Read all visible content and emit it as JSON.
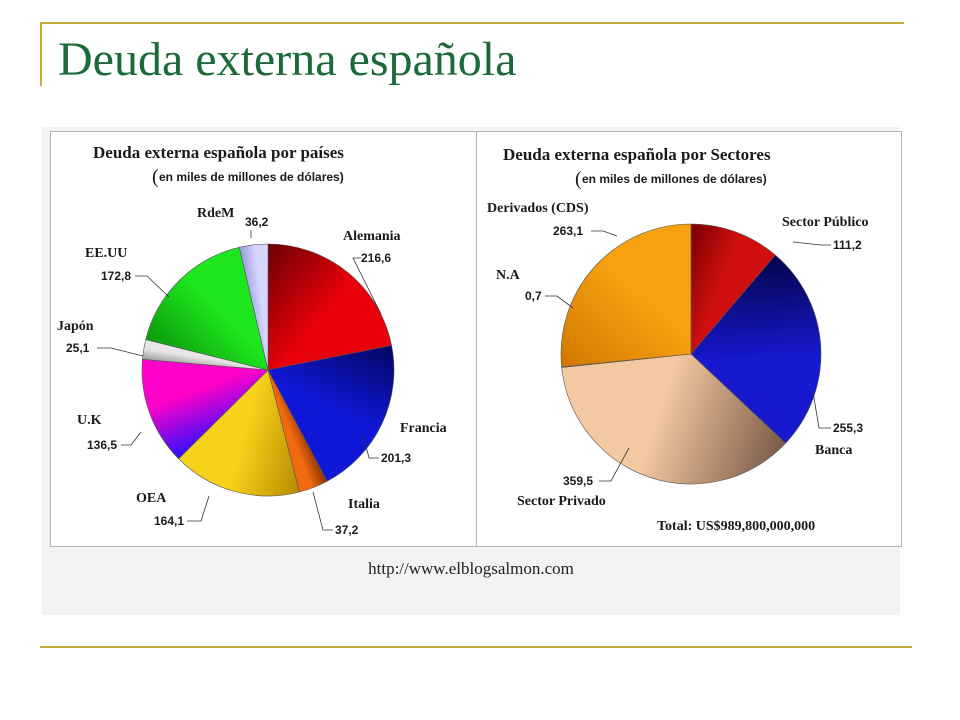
{
  "slide": {
    "title": "Deuda externa española"
  },
  "source": {
    "url": "http://www.elblogsalmon.com"
  },
  "chart_data": [
    {
      "type": "pie",
      "title": "Deuda externa española por países",
      "subtitle_paren": "(",
      "subtitle": "en miles de millones de dólares)",
      "slices": [
        {
          "name": "Alemania",
          "value": 216.6,
          "label": "216,6",
          "color": "#e8000a",
          "dark": "#6a0003"
        },
        {
          "name": "Francia",
          "value": 201.3,
          "label": "201,3",
          "color": "#1018d8",
          "dark": "#050660"
        },
        {
          "name": "Italia",
          "value": 37.2,
          "label": "37,2",
          "color": "#f26a10",
          "dark": "#8a3000"
        },
        {
          "name": "OEA",
          "value": 164.1,
          "label": "164,1",
          "color": "#f7d21a",
          "dark": "#b88a00"
        },
        {
          "name": "U.K",
          "value": 136.5,
          "label": "136,5",
          "color": "#ff00c8",
          "dark": "#2a10ff"
        },
        {
          "name": "Japón",
          "value": 25.1,
          "label": "25,1",
          "color": "#e6e6e6",
          "dark": "#9a9a9a"
        },
        {
          "name": "EE.UU",
          "value": 172.8,
          "label": "172,8",
          "color": "#1ee61e",
          "dark": "#0a9a0a"
        },
        {
          "name": "RdeM",
          "value": 36.2,
          "label": "36,2",
          "color": "#d6d6ff",
          "dark": "#9999dd"
        }
      ]
    },
    {
      "type": "pie",
      "title": "Deuda externa española por Sectores",
      "subtitle_paren": "(",
      "subtitle": "en miles de millones de dólares)",
      "total": "Total: US$989,800,000,000",
      "slices": [
        {
          "name": "Sector Público",
          "value": 111.2,
          "label": "111,2",
          "color": "#d01010",
          "dark": "#7a0000"
        },
        {
          "name": "Banca",
          "value": 255.3,
          "label": "255,3",
          "color": "#1818d0",
          "dark": "#05054a"
        },
        {
          "name": "Sector Privado",
          "value": 359.5,
          "label": "359,5",
          "color": "#f4c8a0",
          "dark": "#7a5a48"
        },
        {
          "name": "N.A",
          "value": 0.7,
          "label": "0,7",
          "color": "#999999",
          "dark": "#666666"
        },
        {
          "name": "Derivados (CDS)",
          "value": 263.1,
          "label": "263,1",
          "color": "#f7a010",
          "dark": "#d07800"
        }
      ]
    }
  ]
}
